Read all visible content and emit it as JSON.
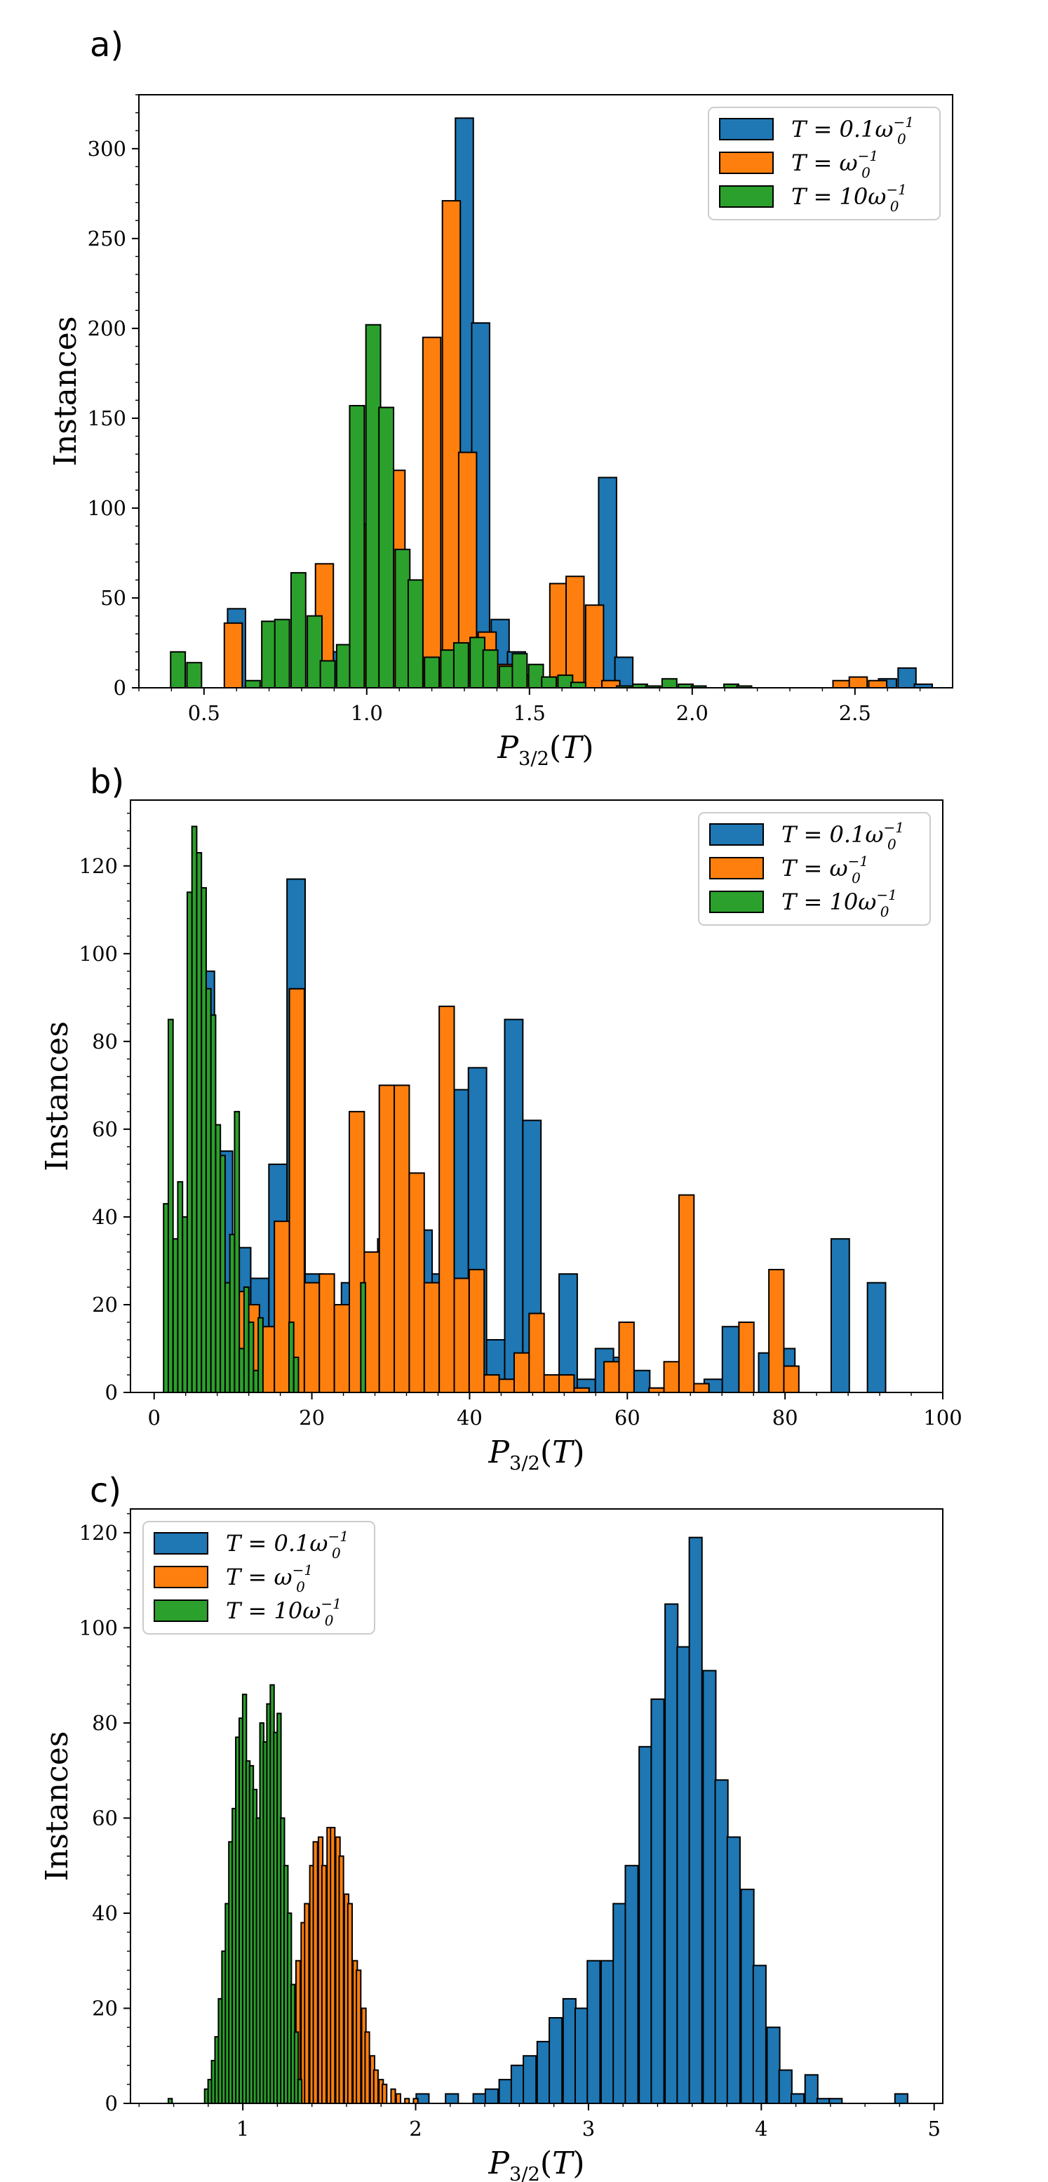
{
  "chart_data": [
    {
      "panel_label": "a)",
      "type": "bar",
      "xlabel": "P3/2(T)",
      "ylabel": "Instances",
      "xlim": [
        0.3,
        2.8
      ],
      "ylim": [
        0,
        330
      ],
      "xticks": [
        "0.5",
        "1.0",
        "1.5",
        "2.0",
        "2.5"
      ],
      "xtick_values": [
        0.5,
        1.0,
        1.5,
        2.0,
        2.5
      ],
      "yticks": [
        "0",
        "50",
        "100",
        "150",
        "200",
        "250",
        "300"
      ],
      "ytick_values": [
        0,
        50,
        100,
        150,
        200,
        250,
        300
      ],
      "legend_position": "top-right",
      "series": [
        {
          "name": "T = 0.1ω0^-1",
          "label_main": "T = 0.1ω",
          "label_sub": "0",
          "label_sup": "−1",
          "color": "#1f77b4",
          "bin_width": 0.055,
          "x": [
            0.6,
            0.9,
            0.98,
            1.02,
            1.08,
            1.13,
            1.19,
            1.24,
            1.3,
            1.35,
            1.41,
            1.46,
            1.52,
            1.57,
            1.63,
            1.74,
            1.79,
            2.6,
            2.66,
            2.71
          ],
          "values": [
            44,
            20,
            37,
            24,
            7,
            5,
            3,
            20,
            317,
            203,
            38,
            20,
            5,
            3,
            2,
            117,
            17,
            5,
            11,
            2
          ]
        },
        {
          "name": "T = ω0^-1",
          "label_main": "T = ω",
          "label_sub": "0",
          "label_sup": "−1",
          "color": "#ff7f0e",
          "bin_width": 0.055,
          "x": [
            0.59,
            0.87,
            0.98,
            1.04,
            1.09,
            1.15,
            1.2,
            1.26,
            1.31,
            1.37,
            1.42,
            1.48,
            1.53,
            1.59,
            1.64,
            1.7,
            1.75,
            2.46,
            2.51,
            2.57
          ],
          "values": [
            36,
            69,
            91,
            156,
            121,
            48,
            195,
            271,
            131,
            31,
            13,
            7,
            5,
            58,
            62,
            46,
            4,
            4,
            6,
            4
          ]
        },
        {
          "name": "T = 10ω0^-1",
          "label_main": "T = 10ω",
          "label_sub": "0",
          "label_sup": "−1",
          "color": "#2ca02c",
          "bin_width": 0.045,
          "x": [
            0.42,
            0.47,
            0.65,
            0.7,
            0.74,
            0.79,
            0.84,
            0.88,
            0.93,
            0.97,
            1.02,
            1.06,
            1.11,
            1.15,
            1.2,
            1.25,
            1.29,
            1.34,
            1.38,
            1.43,
            1.47,
            1.52,
            1.56,
            1.61,
            1.65,
            1.79,
            1.84,
            1.88,
            1.93,
            1.98,
            2.02,
            2.12,
            2.16
          ],
          "values": [
            20,
            14,
            4,
            37,
            38,
            64,
            40,
            15,
            24,
            157,
            202,
            156,
            77,
            60,
            17,
            21,
            25,
            28,
            21,
            12,
            19,
            13,
            6,
            7,
            3,
            1,
            2,
            1,
            5,
            2,
            1,
            2,
            1
          ]
        }
      ]
    },
    {
      "panel_label": "b)",
      "type": "bar",
      "xlabel": "P3/2(T)",
      "ylabel": "Instances",
      "xlim": [
        -3,
        100
      ],
      "ylim": [
        0,
        135
      ],
      "xticks": [
        "0",
        "20",
        "40",
        "60",
        "80",
        "100"
      ],
      "xtick_values": [
        0,
        20,
        40,
        60,
        80,
        100
      ],
      "yticks": [
        "0",
        "20",
        "40",
        "60",
        "80",
        "100",
        "120"
      ],
      "ytick_values": [
        0,
        20,
        40,
        60,
        80,
        100,
        120
      ],
      "legend_position": "top-right",
      "series": [
        {
          "name": "T = 0.1ω0^-1",
          "label_main": "T = 0.1ω",
          "label_sub": "0",
          "label_sup": "−1",
          "color": "#1f77b4",
          "bin_width": 2.3,
          "x": [
            6.5,
            8.8,
            11.1,
            13.4,
            15.7,
            18.0,
            20.3,
            22.6,
            24.9,
            27.2,
            29.5,
            31.8,
            34.1,
            36.4,
            38.7,
            41.0,
            43.3,
            45.6,
            47.9,
            50.2,
            52.5,
            54.8,
            57.1,
            59.4,
            61.7,
            64.0,
            66.3,
            68.6,
            70.9,
            73.2,
            75.5,
            77.8,
            80.1,
            82.4,
            84.7,
            87.0,
            89.3,
            91.6
          ],
          "values": [
            96,
            55,
            33,
            26,
            52,
            117,
            27,
            19,
            25,
            28,
            35,
            45,
            37,
            27,
            69,
            74,
            12,
            85,
            62,
            2,
            27,
            3,
            10,
            8,
            5,
            1,
            3,
            0,
            3,
            15,
            0,
            9,
            10,
            0,
            0,
            35,
            0,
            25
          ]
        },
        {
          "name": "T = ω0^-1",
          "label_main": "T = ω",
          "label_sub": "0",
          "label_sup": "−1",
          "color": "#ff7f0e",
          "bin_width": 1.9,
          "x": [
            10.5,
            12.4,
            14.3,
            16.2,
            18.1,
            20.0,
            21.9,
            23.8,
            25.7,
            27.6,
            29.5,
            31.4,
            33.3,
            35.2,
            37.1,
            39.0,
            40.9,
            42.8,
            44.7,
            46.6,
            48.5,
            50.4,
            52.3,
            54.2,
            56.1,
            58.0,
            59.9,
            61.8,
            63.7,
            65.6,
            67.5,
            69.4,
            71.3,
            73.2,
            75.1,
            77.0,
            78.9,
            80.8
          ],
          "values": [
            23,
            20,
            15,
            39,
            92,
            25,
            27,
            20,
            64,
            32,
            70,
            70,
            50,
            25,
            88,
            26,
            28,
            4,
            3,
            9,
            18,
            4,
            4,
            1,
            0,
            7,
            16,
            0,
            1,
            7,
            45,
            2,
            0,
            0,
            16,
            0,
            28,
            6
          ]
        },
        {
          "name": "T = 10ω0^-1",
          "label_main": "T = 10ω",
          "label_sub": "0",
          "label_sup": "−1",
          "color": "#2ca02c",
          "bin_width": 0.6,
          "x": [
            1.5,
            2.1,
            2.7,
            3.3,
            3.9,
            4.5,
            5.1,
            5.7,
            6.3,
            6.9,
            7.5,
            8.1,
            8.7,
            9.3,
            9.9,
            10.5,
            11.1,
            11.7,
            12.3,
            12.9,
            13.5,
            14.1,
            14.7,
            17.4,
            18.0,
            26.5
          ],
          "values": [
            43,
            85,
            35,
            48,
            40,
            114,
            129,
            123,
            115,
            92,
            86,
            61,
            54,
            25,
            36,
            64,
            10,
            24,
            16,
            5,
            17,
            0,
            0,
            16,
            8,
            25
          ]
        }
      ]
    },
    {
      "panel_label": "c)",
      "type": "bar",
      "xlabel": "P3/2(T)",
      "ylabel": "Instances",
      "xlim": [
        0.35,
        5.05
      ],
      "ylim": [
        0,
        125
      ],
      "xticks": [
        "1",
        "2",
        "3",
        "4",
        "5"
      ],
      "xtick_values": [
        1,
        2,
        3,
        4,
        5
      ],
      "yticks": [
        "0",
        "20",
        "40",
        "60",
        "80",
        "100",
        "120"
      ],
      "ytick_values": [
        0,
        20,
        40,
        60,
        80,
        100,
        120
      ],
      "legend_position": "top-left",
      "series": [
        {
          "name": "T = 0.1ω0^-1",
          "label_main": "T = 0.1ω",
          "label_sub": "0",
          "label_sup": "−1",
          "color": "#1f77b4",
          "bin_width": 0.0736,
          "x": [
            2.04,
            2.21,
            2.37,
            2.44,
            2.52,
            2.59,
            2.66,
            2.74,
            2.81,
            2.89,
            2.96,
            3.03,
            3.11,
            3.18,
            3.25,
            3.33,
            3.4,
            3.48,
            3.55,
            3.62,
            3.7,
            3.77,
            3.84,
            3.92,
            3.99,
            4.07,
            4.14,
            4.21,
            4.29,
            4.36,
            4.43,
            4.81
          ],
          "values": [
            2,
            2,
            2,
            3,
            5,
            8,
            10,
            13,
            18,
            22,
            20,
            30,
            30,
            42,
            50,
            75,
            85,
            105,
            96,
            119,
            91,
            68,
            56,
            45,
            29,
            16,
            7,
            2,
            6,
            1,
            1,
            2
          ]
        },
        {
          "name": "T = ω0^-1",
          "label_main": "T = ω",
          "label_sub": "0",
          "label_sup": "−1",
          "color": "#ff7f0e",
          "bin_width": 0.025,
          "x": [
            1.25,
            1.27,
            1.3,
            1.32,
            1.35,
            1.37,
            1.4,
            1.42,
            1.45,
            1.47,
            1.5,
            1.52,
            1.55,
            1.57,
            1.6,
            1.62,
            1.65,
            1.67,
            1.7,
            1.72,
            1.75,
            1.77,
            1.8,
            1.82,
            1.87,
            1.9,
            1.95,
            2.0
          ],
          "values": [
            5,
            10,
            18,
            30,
            38,
            42,
            50,
            55,
            56,
            50,
            58,
            58,
            56,
            52,
            44,
            42,
            30,
            28,
            20,
            15,
            10,
            7,
            5,
            4,
            3,
            2,
            1,
            1
          ]
        },
        {
          "name": "T = 10ω0^-1",
          "label_main": "T = 10ω",
          "label_sub": "0",
          "label_sup": "−1",
          "color": "#2ca02c",
          "bin_width": 0.022,
          "x": [
            0.58,
            0.79,
            0.81,
            0.83,
            0.85,
            0.87,
            0.89,
            0.91,
            0.93,
            0.95,
            0.97,
            0.99,
            1.01,
            1.03,
            1.05,
            1.07,
            1.09,
            1.11,
            1.13,
            1.15,
            1.17,
            1.19,
            1.21,
            1.23,
            1.25,
            1.27,
            1.29,
            1.31,
            1.33
          ],
          "values": [
            1,
            3,
            5,
            9,
            14,
            22,
            32,
            42,
            55,
            62,
            77,
            81,
            86,
            72,
            71,
            66,
            60,
            80,
            76,
            84,
            88,
            78,
            82,
            60,
            50,
            40,
            25,
            15,
            5
          ]
        }
      ]
    }
  ]
}
